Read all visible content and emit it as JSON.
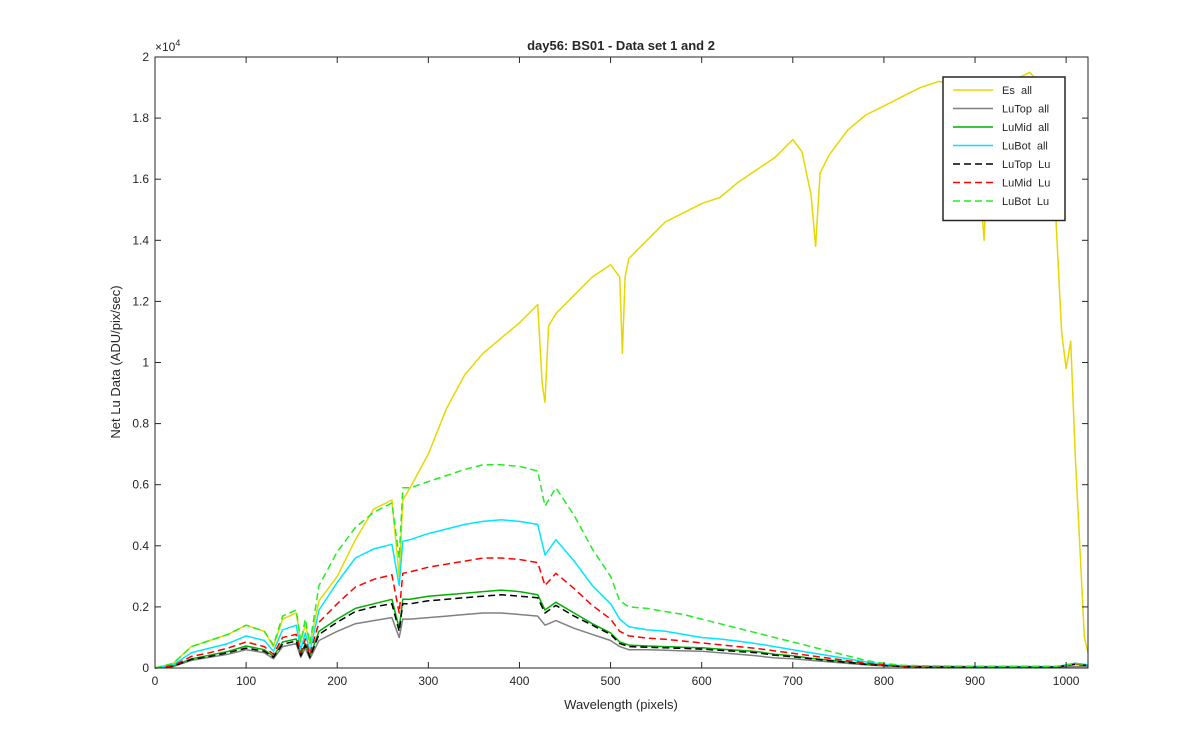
{
  "chart_data": {
    "type": "line",
    "title": "day56: BS01 - Data set 1 and 2",
    "xlabel": "Wavelength (pixels)",
    "ylabel": "Net Lu Data (ADU/pix/sec)",
    "xlim": [
      0,
      1024
    ],
    "ylim": [
      0,
      20000
    ],
    "xticks": [
      0,
      100,
      200,
      300,
      400,
      500,
      600,
      700,
      800,
      900,
      1000
    ],
    "xtick_labels": [
      "0",
      "100",
      "200",
      "300",
      "400",
      "500",
      "600",
      "700",
      "800",
      "900",
      "1000"
    ],
    "yticks": [
      0,
      2000,
      4000,
      6000,
      8000,
      10000,
      12000,
      14000,
      16000,
      18000,
      20000
    ],
    "ytick_labels": [
      "0",
      "0.2",
      "0.4",
      "0.6",
      "0.8",
      "1",
      "1.2",
      "1.4",
      "1.6",
      "1.8",
      "2"
    ],
    "y_exponent_base": "×10",
    "y_exponent_power": "4",
    "grid": false,
    "legend_position": "top-right",
    "series": [
      {
        "name": "Es  all",
        "color": "#e6d800",
        "dash": "solid",
        "x": [
          0,
          20,
          40,
          60,
          80,
          100,
          120,
          130,
          140,
          155,
          160,
          165,
          170,
          180,
          200,
          220,
          240,
          260,
          268,
          272,
          280,
          300,
          320,
          340,
          360,
          380,
          400,
          420,
          425,
          428,
          432,
          440,
          460,
          480,
          500,
          510,
          513,
          516,
          520,
          540,
          560,
          580,
          600,
          620,
          640,
          660,
          680,
          700,
          710,
          720,
          725,
          730,
          740,
          760,
          780,
          800,
          820,
          840,
          860,
          880,
          900,
          905,
          910,
          915,
          920,
          940,
          960,
          975,
          985,
          990,
          995,
          1000,
          1005,
          1010,
          1020,
          1024
        ],
        "y": [
          0,
          150,
          700,
          900,
          1100,
          1400,
          1200,
          700,
          1600,
          1800,
          900,
          1400,
          800,
          2200,
          3000,
          4200,
          5200,
          5500,
          3000,
          5500,
          5900,
          7000,
          8500,
          9600,
          10300,
          10800,
          11300,
          11900,
          9300,
          8700,
          11200,
          11600,
          12200,
          12800,
          13200,
          12800,
          10300,
          12800,
          13400,
          14000,
          14600,
          14900,
          15200,
          15400,
          15900,
          16300,
          16700,
          17300,
          16900,
          15500,
          13800,
          16200,
          16800,
          17600,
          18100,
          18400,
          18700,
          19000,
          19200,
          19100,
          18900,
          16000,
          14000,
          17500,
          18800,
          19200,
          19500,
          19000,
          17000,
          14000,
          11000,
          9800,
          10700,
          7000,
          1000,
          500
        ]
      },
      {
        "name": "LuTop  all",
        "color": "#808080",
        "dash": "solid",
        "x": [
          0,
          20,
          40,
          60,
          80,
          100,
          120,
          130,
          140,
          155,
          160,
          165,
          170,
          180,
          200,
          220,
          240,
          260,
          268,
          272,
          280,
          300,
          320,
          340,
          360,
          380,
          400,
          420,
          428,
          440,
          460,
          480,
          500,
          510,
          520,
          540,
          560,
          580,
          600,
          620,
          640,
          660,
          680,
          700,
          720,
          740,
          760,
          780,
          800,
          820,
          850,
          900,
          950,
          990,
          1000,
          1010,
          1024
        ],
        "y": [
          0,
          50,
          250,
          350,
          450,
          600,
          500,
          300,
          700,
          800,
          350,
          650,
          300,
          900,
          1200,
          1450,
          1550,
          1650,
          1000,
          1600,
          1600,
          1650,
          1700,
          1750,
          1800,
          1800,
          1750,
          1700,
          1400,
          1550,
          1300,
          1100,
          900,
          700,
          600,
          600,
          580,
          560,
          550,
          500,
          450,
          400,
          330,
          300,
          250,
          200,
          150,
          100,
          70,
          50,
          40,
          30,
          30,
          30,
          40,
          50,
          50
        ]
      },
      {
        "name": "LuMid  all",
        "color": "#00b000",
        "dash": "solid",
        "x": [
          0,
          20,
          40,
          60,
          80,
          100,
          120,
          130,
          140,
          155,
          160,
          165,
          170,
          180,
          200,
          220,
          240,
          260,
          268,
          272,
          280,
          300,
          320,
          340,
          360,
          380,
          400,
          420,
          428,
          440,
          460,
          480,
          500,
          510,
          520,
          540,
          560,
          580,
          600,
          620,
          640,
          660,
          680,
          700,
          720,
          740,
          760,
          780,
          800,
          820,
          850,
          900,
          950,
          990,
          1000,
          1010,
          1024
        ],
        "y": [
          0,
          60,
          300,
          420,
          540,
          720,
          600,
          380,
          850,
          950,
          420,
          800,
          380,
          1200,
          1600,
          1950,
          2100,
          2250,
          1300,
          2250,
          2250,
          2350,
          2400,
          2450,
          2500,
          2550,
          2500,
          2400,
          1900,
          2150,
          1800,
          1450,
          1150,
          850,
          750,
          720,
          700,
          680,
          660,
          620,
          580,
          540,
          450,
          400,
          320,
          260,
          200,
          130,
          90,
          60,
          50,
          40,
          40,
          40,
          100,
          150,
          100
        ]
      },
      {
        "name": "LuBot  all",
        "color": "#00e5ff",
        "dash": "solid",
        "x": [
          0,
          20,
          40,
          60,
          80,
          100,
          120,
          130,
          140,
          155,
          160,
          165,
          170,
          180,
          200,
          220,
          240,
          260,
          268,
          272,
          280,
          300,
          320,
          340,
          360,
          380,
          400,
          420,
          428,
          440,
          460,
          480,
          500,
          510,
          520,
          540,
          560,
          580,
          600,
          620,
          640,
          660,
          680,
          700,
          720,
          740,
          760,
          780,
          800,
          820,
          850,
          900,
          950,
          990,
          1000,
          1010,
          1024
        ],
        "y": [
          0,
          100,
          500,
          650,
          800,
          1050,
          900,
          550,
          1250,
          1400,
          600,
          1150,
          550,
          1900,
          2800,
          3600,
          3900,
          4050,
          2700,
          4150,
          4200,
          4400,
          4550,
          4700,
          4800,
          4850,
          4800,
          4700,
          3700,
          4200,
          3500,
          2700,
          2100,
          1600,
          1350,
          1250,
          1200,
          1100,
          1000,
          950,
          880,
          800,
          700,
          600,
          500,
          400,
          300,
          200,
          120,
          80,
          60,
          50,
          50,
          50,
          100,
          150,
          100
        ]
      },
      {
        "name": "LuTop  Lu",
        "color": "#000000",
        "dash": "dashed",
        "x": [
          0,
          20,
          40,
          60,
          80,
          100,
          120,
          130,
          140,
          155,
          160,
          165,
          170,
          180,
          200,
          220,
          240,
          260,
          268,
          272,
          280,
          300,
          320,
          340,
          360,
          380,
          400,
          420,
          428,
          440,
          460,
          480,
          500,
          510,
          520,
          540,
          560,
          580,
          600,
          620,
          640,
          660,
          680,
          700,
          720,
          740,
          760,
          780,
          800,
          820,
          850,
          900,
          950,
          990,
          1000,
          1010,
          1024
        ],
        "y": [
          0,
          60,
          280,
          380,
          500,
          650,
          550,
          350,
          780,
          880,
          400,
          750,
          350,
          1100,
          1500,
          1850,
          2000,
          2100,
          1200,
          2100,
          2100,
          2200,
          2250,
          2300,
          2350,
          2400,
          2350,
          2300,
          1800,
          2050,
          1700,
          1400,
          1100,
          800,
          700,
          680,
          660,
          640,
          620,
          580,
          540,
          500,
          420,
          370,
          300,
          240,
          180,
          120,
          80,
          50,
          40,
          30,
          30,
          30,
          80,
          120,
          80
        ]
      },
      {
        "name": "LuMid  Lu",
        "color": "#ff0000",
        "dash": "dashed",
        "x": [
          0,
          20,
          40,
          60,
          80,
          100,
          120,
          130,
          140,
          155,
          160,
          165,
          170,
          180,
          200,
          220,
          240,
          260,
          268,
          272,
          280,
          300,
          320,
          340,
          360,
          380,
          400,
          420,
          428,
          440,
          460,
          480,
          500,
          510,
          520,
          540,
          560,
          580,
          600,
          620,
          640,
          660,
          680,
          700,
          720,
          740,
          760,
          780,
          800,
          820,
          850,
          900,
          950,
          990,
          1000,
          1010,
          1024
        ],
        "y": [
          0,
          80,
          380,
          500,
          650,
          850,
          700,
          450,
          1000,
          1100,
          500,
          950,
          450,
          1500,
          2100,
          2650,
          2900,
          3050,
          1800,
          3100,
          3150,
          3300,
          3400,
          3500,
          3600,
          3600,
          3550,
          3450,
          2700,
          3100,
          2600,
          2050,
          1600,
          1200,
          1050,
          980,
          940,
          880,
          820,
          760,
          700,
          640,
          560,
          480,
          400,
          320,
          240,
          160,
          100,
          70,
          55,
          45,
          45,
          45,
          90,
          130,
          90
        ]
      },
      {
        "name": "LuBot  Lu",
        "color": "#22ee22",
        "dash": "dashed",
        "x": [
          0,
          20,
          40,
          60,
          80,
          100,
          120,
          130,
          140,
          155,
          160,
          165,
          170,
          180,
          200,
          220,
          240,
          260,
          268,
          272,
          280,
          300,
          320,
          340,
          360,
          380,
          400,
          420,
          428,
          440,
          460,
          480,
          500,
          510,
          520,
          540,
          560,
          580,
          600,
          620,
          640,
          660,
          680,
          700,
          720,
          740,
          760,
          780,
          800,
          820,
          850,
          900,
          950,
          990,
          1000,
          1010,
          1024
        ],
        "y": [
          0,
          150,
          700,
          900,
          1100,
          1400,
          1200,
          750,
          1700,
          1900,
          850,
          1600,
          800,
          2700,
          3800,
          4600,
          5100,
          5400,
          3600,
          5900,
          5900,
          6100,
          6300,
          6500,
          6650,
          6650,
          6600,
          6450,
          5300,
          5900,
          5000,
          3900,
          3000,
          2200,
          2000,
          1950,
          1850,
          1750,
          1600,
          1450,
          1300,
          1150,
          1000,
          850,
          700,
          550,
          400,
          250,
          150,
          90,
          70,
          55,
          55,
          55,
          100,
          150,
          100
        ]
      }
    ]
  }
}
